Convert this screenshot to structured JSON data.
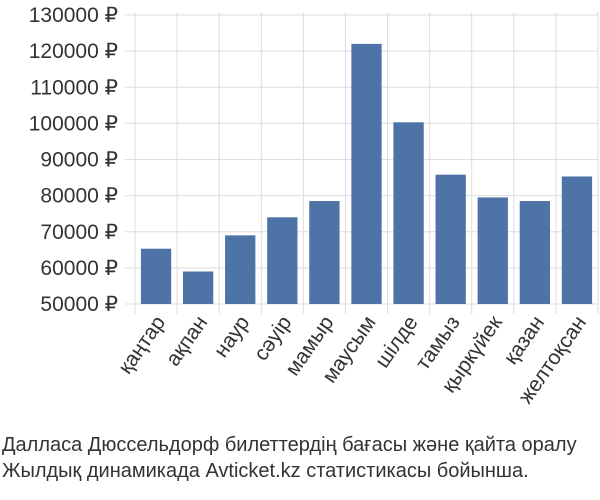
{
  "chart_data": {
    "type": "bar",
    "categories": [
      "қаңтар",
      "ақпан",
      "наур",
      "сәуір",
      "мамыр",
      "маусым",
      "шілде",
      "тамыз",
      "қыркүйек",
      "қазан",
      "желтоқсан"
    ],
    "values": [
      65300,
      59000,
      69000,
      74000,
      78500,
      122000,
      100300,
      85800,
      79500,
      78500,
      85300
    ],
    "y_ticks": [
      "50000 ₽",
      "60000 ₽",
      "70000 ₽",
      "80000 ₽",
      "90000 ₽",
      "100000 ₽",
      "110000 ₽",
      "120000 ₽",
      "130000 ₽"
    ],
    "y_tick_values": [
      50000,
      60000,
      70000,
      80000,
      90000,
      100000,
      110000,
      120000,
      130000
    ],
    "ylim": [
      50000,
      130000
    ],
    "grid": true,
    "legend": "none",
    "bar_color": "#4e73a6",
    "grid_color": "#dddddd"
  },
  "caption": {
    "line1": "Далласа Дюссельдорф билеттердің бағасы және қайта оралу",
    "line2": "Жылдық динамикада Avticket.kz статистикасы бойынша."
  }
}
